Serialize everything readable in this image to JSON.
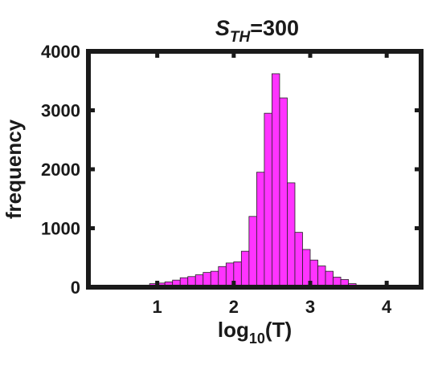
{
  "chart_data": {
    "type": "bar",
    "title": {
      "main": "S",
      "sub": "TH",
      "rest": "=300"
    },
    "xlabel": {
      "main": "log",
      "sub": "10",
      "rest": "(T)"
    },
    "ylabel": "frequency",
    "xlim": [
      0.1,
      4.45
    ],
    "ylim": [
      0,
      4000
    ],
    "xticks": [
      1,
      2,
      3,
      4
    ],
    "xtick_labels": [
      "1",
      "2",
      "3",
      "4"
    ],
    "yticks": [
      0,
      1000,
      2000,
      3000,
      4000
    ],
    "ytick_labels": [
      "0",
      "1000",
      "2000",
      "3000",
      "4000"
    ],
    "bar_color": "#ff33ff",
    "bin_width": 0.1,
    "bins": [
      {
        "x": 0.85,
        "y": 30
      },
      {
        "x": 0.95,
        "y": 60
      },
      {
        "x": 1.05,
        "y": 70
      },
      {
        "x": 1.15,
        "y": 90
      },
      {
        "x": 1.25,
        "y": 120
      },
      {
        "x": 1.35,
        "y": 160
      },
      {
        "x": 1.45,
        "y": 180
      },
      {
        "x": 1.55,
        "y": 210
      },
      {
        "x": 1.65,
        "y": 250
      },
      {
        "x": 1.75,
        "y": 270
      },
      {
        "x": 1.85,
        "y": 350
      },
      {
        "x": 1.95,
        "y": 410
      },
      {
        "x": 2.05,
        "y": 430
      },
      {
        "x": 2.15,
        "y": 610
      },
      {
        "x": 2.25,
        "y": 1200
      },
      {
        "x": 2.35,
        "y": 1950
      },
      {
        "x": 2.45,
        "y": 2950
      },
      {
        "x": 2.55,
        "y": 3620
      },
      {
        "x": 2.65,
        "y": 3210
      },
      {
        "x": 2.75,
        "y": 1770
      },
      {
        "x": 2.85,
        "y": 930
      },
      {
        "x": 2.95,
        "y": 640
      },
      {
        "x": 3.05,
        "y": 460
      },
      {
        "x": 3.15,
        "y": 360
      },
      {
        "x": 3.25,
        "y": 270
      },
      {
        "x": 3.35,
        "y": 170
      },
      {
        "x": 3.45,
        "y": 130
      },
      {
        "x": 3.55,
        "y": 60
      },
      {
        "x": 3.65,
        "y": 25
      }
    ]
  }
}
